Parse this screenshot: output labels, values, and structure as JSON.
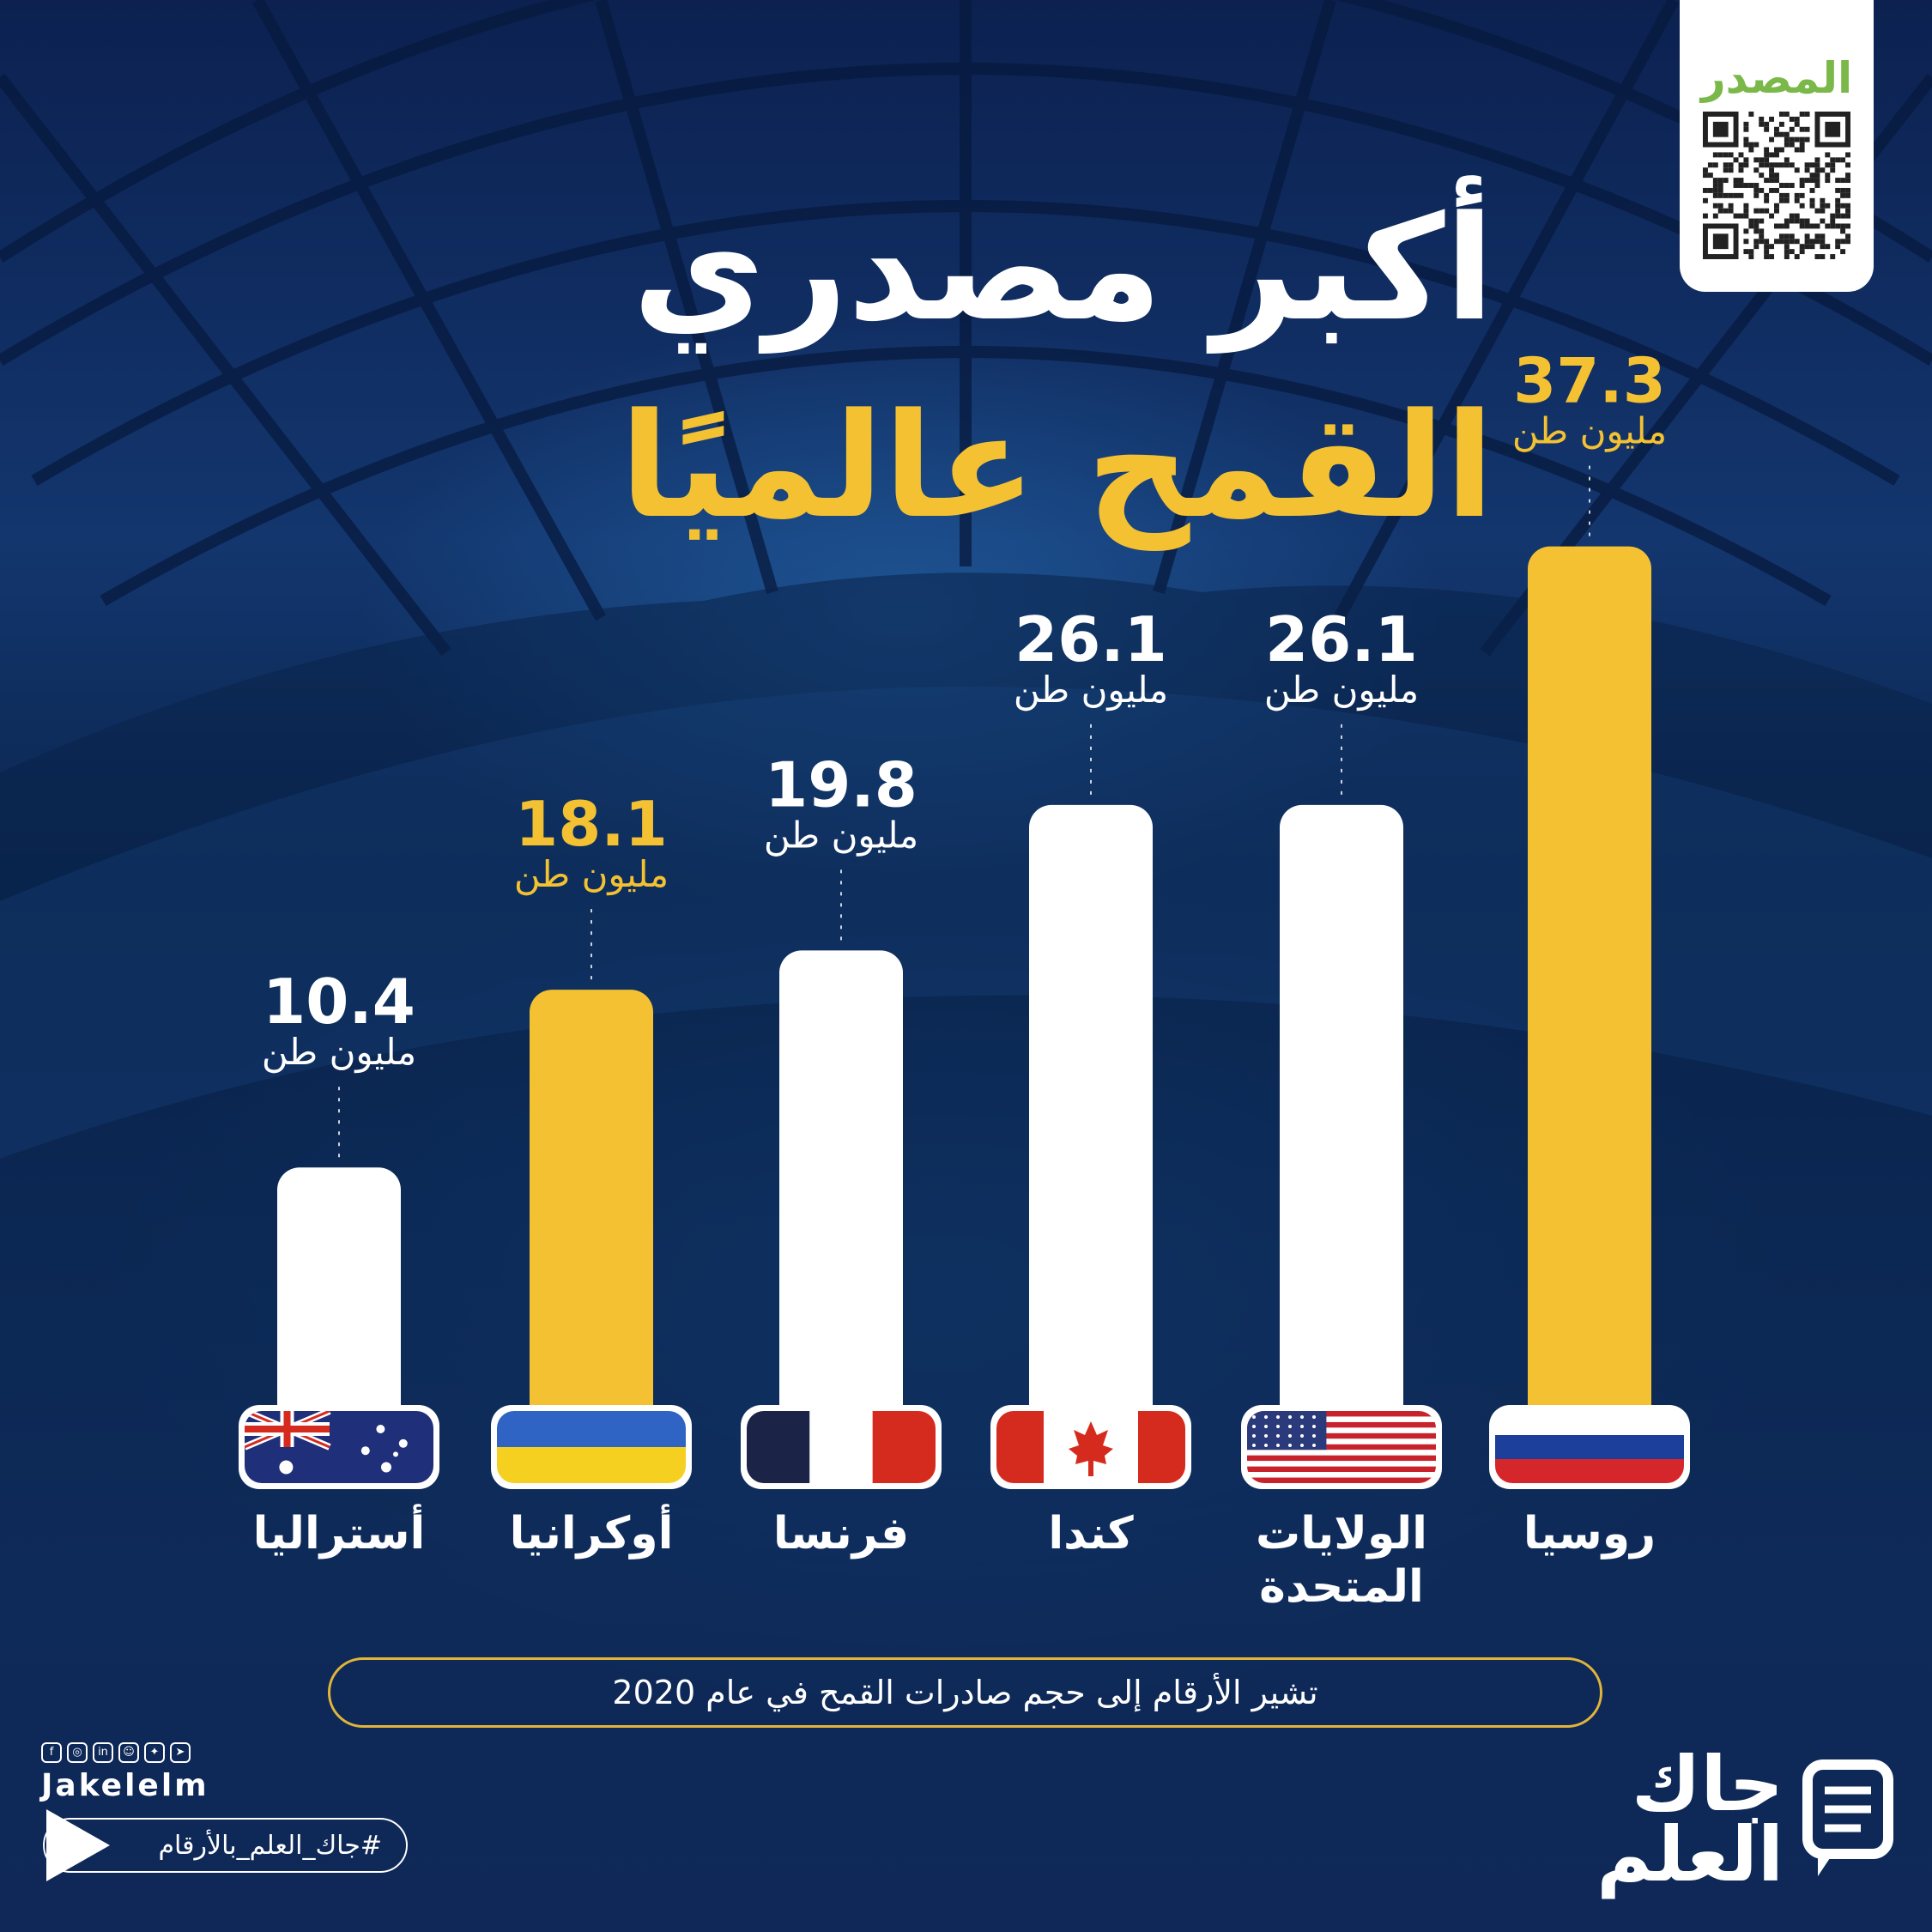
{
  "title": {
    "line1": "أكبر مصدري",
    "line2": "القمح عالميًا"
  },
  "source": {
    "label": "المصدر"
  },
  "chart_data": {
    "type": "bar",
    "categories": [
      "روسيا",
      "الولايات المتحدة",
      "كندا",
      "فرنسا",
      "أوكرانيا",
      "أستراليا"
    ],
    "category_lines": [
      [
        "روسيا"
      ],
      [
        "الولايات",
        "المتحدة"
      ],
      [
        "كندا"
      ],
      [
        "فرنسا"
      ],
      [
        "أوكرانيا"
      ],
      [
        "أستراليا"
      ]
    ],
    "values": [
      37.3,
      26.1,
      26.1,
      19.8,
      18.1,
      10.4
    ],
    "value_labels": [
      "37.3",
      "26.1",
      "26.1",
      "19.8",
      "18.1",
      "10.4"
    ],
    "unit": "مليون طن",
    "highlight": [
      true,
      false,
      false,
      false,
      true,
      false
    ],
    "flags": [
      "russia",
      "usa",
      "canada",
      "france",
      "ukraine",
      "australia"
    ],
    "colors": {
      "highlight": "#f3c132",
      "normal": "#ffffff"
    },
    "ylim": [
      0,
      40
    ],
    "grid": false,
    "legend": "none"
  },
  "note": "تشير الأرقام إلى حجم صادرات القمح في عام 2020",
  "footer": {
    "social_icons": [
      "facebook-icon",
      "instagram-icon",
      "linkedin-icon",
      "snapchat-icon",
      "twitter-icon",
      "telegram-icon"
    ],
    "handle": "Jakelelm",
    "hashtag": "#جاك_العلم_بالأرقام",
    "brand_line1": "جاك",
    "brand_line2": "العلم"
  }
}
